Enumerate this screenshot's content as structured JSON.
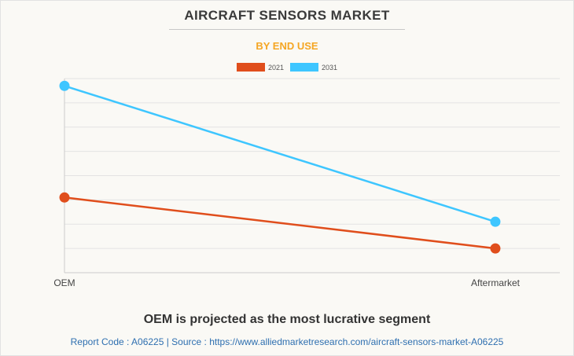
{
  "page": {
    "title": "AIRCRAFT SENSORS MARKET",
    "subtitle": "BY END USE",
    "insight": "OEM is projected as the most lucrative segment",
    "footer": "Report Code : A06225  |  Source : https://www.alliedmarketresearch.com/aircraft-sensors-market-A06225"
  },
  "chart_data": {
    "type": "line",
    "title": "AIRCRAFT SENSORS MARKET",
    "subtitle": "BY END USE",
    "categories": [
      "OEM",
      "Aftermarket"
    ],
    "series": [
      {
        "name": "2021",
        "color": "#e04e1c",
        "values": [
          3.1,
          1.0
        ]
      },
      {
        "name": "2031",
        "color": "#3ec6ff",
        "values": [
          7.7,
          2.1
        ]
      }
    ],
    "ylim": [
      0,
      8
    ],
    "grid": true,
    "legend": "top-center",
    "xlabel": "",
    "ylabel": ""
  }
}
